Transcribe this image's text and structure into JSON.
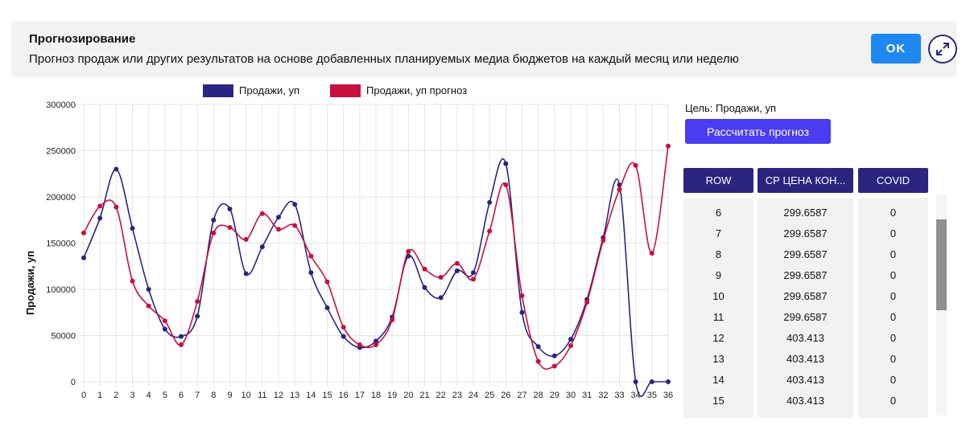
{
  "banner": {
    "title": "Прогнозирование",
    "description": "Прогноз продаж или других результатов на основе добавленных планируемых медиа бюджетов на каждый месяц или неделю",
    "ok_label": "OK",
    "expand_icon": "expand-arrows-icon"
  },
  "colors": {
    "actual": "#2a2580",
    "forecast": "#c8103e",
    "button": "#1e88f0",
    "calc_button": "#4a3cf0",
    "header": "#2b2580"
  },
  "chart_data": {
    "type": "line",
    "ylabel": "Продажи, уп",
    "xlabel": "",
    "ylim": [
      0,
      300000
    ],
    "yticks": [
      "0",
      "50000",
      "100000",
      "150000",
      "200000",
      "250000",
      "300000"
    ],
    "x": [
      0,
      1,
      2,
      3,
      4,
      5,
      6,
      7,
      8,
      9,
      10,
      11,
      12,
      13,
      14,
      15,
      16,
      17,
      18,
      19,
      20,
      21,
      22,
      23,
      24,
      25,
      26,
      27,
      28,
      29,
      30,
      31,
      32,
      33,
      34,
      35,
      36
    ],
    "series": [
      {
        "name": "Продажи, уп",
        "color": "#2a2580",
        "values": [
          134000,
          177000,
          230000,
          166000,
          100000,
          57000,
          49000,
          71000,
          175000,
          187000,
          117000,
          146000,
          178000,
          192000,
          118000,
          80000,
          49000,
          37000,
          44000,
          70000,
          136000,
          102000,
          91000,
          120000,
          118000,
          194000,
          236000,
          75000,
          38000,
          28000,
          46000,
          89000,
          156000,
          213000,
          0,
          0,
          0
        ]
      },
      {
        "name": "Продажи, уп прогноз",
        "color": "#c8103e",
        "values": [
          161000,
          190000,
          189000,
          109000,
          82000,
          66000,
          40000,
          87000,
          161000,
          167000,
          154000,
          182000,
          165000,
          169000,
          136000,
          108000,
          59000,
          40000,
          40000,
          67000,
          141000,
          122000,
          113000,
          128000,
          111000,
          163000,
          213000,
          93000,
          22000,
          17000,
          39000,
          86000,
          153000,
          208000,
          234000,
          139000,
          255000
        ]
      }
    ]
  },
  "sidebar": {
    "target_label": "Цель: Продажи, уп",
    "calc_button": "Рассчитать прогноз"
  },
  "table": {
    "columns": [
      "ROW",
      "СР ЦЕНА КОН...",
      "COVID"
    ],
    "rows": [
      [
        "6",
        "299.6587",
        "0"
      ],
      [
        "7",
        "299.6587",
        "0"
      ],
      [
        "8",
        "299.6587",
        "0"
      ],
      [
        "9",
        "299.6587",
        "0"
      ],
      [
        "10",
        "299.6587",
        "0"
      ],
      [
        "11",
        "299.6587",
        "0"
      ],
      [
        "12",
        "403.413",
        "0"
      ],
      [
        "13",
        "403.413",
        "0"
      ],
      [
        "14",
        "403.413",
        "0"
      ],
      [
        "15",
        "403.413",
        "0"
      ]
    ]
  }
}
